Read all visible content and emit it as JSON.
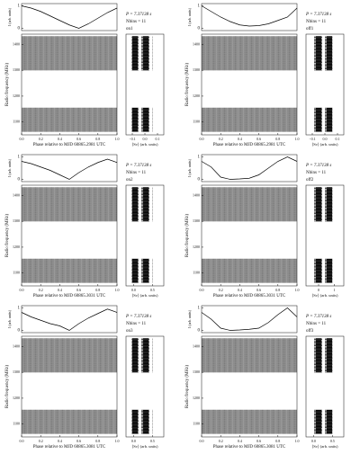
{
  "chart_data": [
    {
      "type": "profile",
      "label": "on1",
      "period_text": "P = 7.37138 s",
      "nbins_text": "Nbins = 11",
      "ylabel": "I (arb. units)",
      "x": [
        0,
        0.1,
        0.2,
        0.3,
        0.4,
        0.5,
        0.6,
        0.7,
        0.8,
        0.9,
        1.0
      ],
      "values": [
        1.0,
        0.9,
        0.75,
        0.55,
        0.35,
        0.15,
        0.0,
        0.2,
        0.45,
        0.7,
        0.9
      ],
      "ylim": [
        -0.1,
        1.1
      ],
      "yticks": [
        0,
        1
      ],
      "xlim": [
        0,
        1.0
      ],
      "xticks": [
        {
          "value": 0,
          "label": "0.0"
        },
        0.2,
        0.4,
        0.6,
        0.8,
        {
          "value": 1,
          "label": "1.0"
        }
      ],
      "xlabel": "Phase relative to MJD 60865.2981 UTC",
      "freq_ylabel": "Radio frequency (MHz)",
      "freq_ylim": [
        1050,
        1440
      ],
      "freq_yticks": [
        1100,
        1200,
        1300,
        1400
      ],
      "spec_xlabel": "⟨Sν⟩ (arb. units)",
      "spec_xlim": [
        -0.15,
        0.15
      ],
      "spec_xticks": [
        {
          "value": -0.1,
          "label": "−0.1"
        },
        {
          "value": 0,
          "label": "0.0"
        },
        0.1
      ]
    },
    {
      "type": "profile",
      "label": "off1",
      "period_text": "P = 7.37138 s",
      "nbins_text": "Nbins = 11",
      "ylabel": "I (arb. units)",
      "x": [
        0,
        0.1,
        0.2,
        0.3,
        0.4,
        0.5,
        0.6,
        0.7,
        0.8,
        0.9,
        1.0
      ],
      "values": [
        1.0,
        0.75,
        0.5,
        0.3,
        0.15,
        0.1,
        0.12,
        0.2,
        0.35,
        0.5,
        0.9
      ],
      "ylim": [
        -0.1,
        1.1
      ],
      "yticks": [
        0,
        1
      ],
      "xlim": [
        0,
        1.0
      ],
      "xticks": [
        {
          "value": 0,
          "label": "0.0"
        },
        0.2,
        0.4,
        0.6,
        0.8,
        {
          "value": 1,
          "label": "1.0"
        }
      ],
      "xlabel": "Phase relative to MJD 60865.2981 UTC",
      "freq_ylabel": "Radio frequency (MHz)",
      "freq_ylim": [
        1050,
        1440
      ],
      "freq_yticks": [
        1100,
        1200,
        1300,
        1400
      ],
      "spec_xlabel": "⟨Sν⟩ (arb. units)",
      "spec_xlim": [
        -0.15,
        0.15
      ],
      "spec_xticks": [
        {
          "value": -0.1,
          "label": "−0.1"
        },
        {
          "value": 0,
          "label": "0.0"
        },
        0.1
      ]
    },
    {
      "type": "profile",
      "label": "on2",
      "period_text": "P = 7.37138 s",
      "nbins_text": "Nbins = 11",
      "ylabel": "I (arb. units)",
      "x": [
        0,
        0.1,
        0.2,
        0.3,
        0.4,
        0.5,
        0.6,
        0.7,
        0.8,
        0.9,
        1.0
      ],
      "values": [
        0.8,
        0.7,
        0.55,
        0.4,
        0.2,
        0.0,
        0.3,
        0.55,
        0.75,
        0.9,
        0.75
      ],
      "ylim": [
        -0.1,
        1.1
      ],
      "yticks": [
        0,
        1
      ],
      "xlim": [
        0,
        1.0
      ],
      "xticks": [
        {
          "value": 0,
          "label": "0.0"
        },
        0.2,
        0.4,
        0.6,
        0.8,
        {
          "value": 1,
          "label": "1.0"
        }
      ],
      "xlabel": "Phase relative to MJD 60865.3031 UTC",
      "freq_ylabel": "Radio frequency (MHz)",
      "freq_ylim": [
        1050,
        1440
      ],
      "freq_yticks": [
        1100,
        1200,
        1300,
        1400
      ],
      "spec_xlabel": "⟨Sν⟩ (arb. units)",
      "spec_xlim": [
        -0.2,
        0.8
      ],
      "spec_xticks": [
        {
          "value": 0,
          "label": "0.0"
        },
        0.5
      ]
    },
    {
      "type": "profile",
      "label": "off2",
      "period_text": "P = 7.37138 s",
      "nbins_text": "Nbins = 11",
      "ylabel": "I (arb. units)",
      "x": [
        0,
        0.1,
        0.2,
        0.3,
        0.4,
        0.5,
        0.6,
        0.7,
        0.8,
        0.9,
        1.0
      ],
      "values": [
        0.8,
        0.55,
        0.1,
        0.0,
        0.02,
        0.05,
        0.2,
        0.5,
        0.8,
        1.0,
        0.8
      ],
      "ylim": [
        -0.1,
        1.1
      ],
      "yticks": [
        0,
        1
      ],
      "xlim": [
        0,
        1.0
      ],
      "xticks": [
        {
          "value": 0,
          "label": "0.0"
        },
        0.2,
        0.4,
        0.6,
        0.8,
        {
          "value": 1,
          "label": "1.0"
        }
      ],
      "xlabel": "Phase relative to MJD 60865.3031 UTC",
      "freq_ylabel": "Radio frequency (MHz)",
      "freq_ylim": [
        1050,
        1440
      ],
      "freq_yticks": [
        1100,
        1200,
        1300,
        1400
      ],
      "spec_xlabel": "⟨Sν⟩ (arb. units)",
      "spec_xlim": [
        -0.8,
        1.6
      ],
      "spec_xticks": [
        0,
        1
      ]
    },
    {
      "type": "profile",
      "label": "on3",
      "period_text": "P = 7.37138 s",
      "nbins_text": "Nbins = 11",
      "ylabel": "I (arb. units)",
      "x": [
        0,
        0.1,
        0.2,
        0.3,
        0.4,
        0.5,
        0.6,
        0.7,
        0.8,
        0.9,
        1.0
      ],
      "values": [
        0.8,
        0.6,
        0.45,
        0.3,
        0.2,
        0.0,
        0.3,
        0.55,
        0.75,
        0.95,
        0.8
      ],
      "ylim": [
        -0.1,
        1.1
      ],
      "yticks": [
        0,
        1
      ],
      "xlim": [
        0,
        1.0
      ],
      "xticks": [
        {
          "value": 0,
          "label": "0.0"
        },
        0.2,
        0.4,
        0.6,
        0.8,
        {
          "value": 1,
          "label": "1.0"
        }
      ],
      "xlabel": "Phase relative to MJD 60865.3081 UTC",
      "freq_ylabel": "Radio frequency (MHz)",
      "freq_ylim": [
        1050,
        1440
      ],
      "freq_yticks": [
        1100,
        1200,
        1300,
        1400
      ],
      "spec_xlabel": "⟨Sν⟩ (arb. units)",
      "spec_xlim": [
        -0.2,
        0.8
      ],
      "spec_xticks": [
        {
          "value": 0,
          "label": "0.0"
        },
        0.5
      ]
    },
    {
      "type": "profile",
      "label": "off3",
      "period_text": "P = 7.37138 s",
      "nbins_text": "Nbins = 11",
      "ylabel": "I (arb. units)",
      "x": [
        0,
        0.1,
        0.2,
        0.3,
        0.4,
        0.5,
        0.6,
        0.7,
        0.8,
        0.9,
        1.0
      ],
      "values": [
        0.8,
        0.5,
        0.1,
        0.0,
        0.02,
        0.05,
        0.1,
        0.35,
        0.7,
        1.0,
        0.6
      ],
      "ylim": [
        -0.1,
        1.1
      ],
      "yticks": [
        0,
        1
      ],
      "xlim": [
        0,
        1.0
      ],
      "xticks": [
        {
          "value": 0,
          "label": "0.0"
        },
        0.2,
        0.4,
        0.6,
        0.8,
        {
          "value": 1,
          "label": "1.0"
        }
      ],
      "xlabel": "Phase relative to MJD 60865.3081 UTC",
      "freq_ylabel": "Radio frequency (MHz)",
      "freq_ylim": [
        1050,
        1440
      ],
      "freq_yticks": [
        1100,
        1200,
        1300,
        1400
      ],
      "spec_xlabel": "⟨Sν⟩ (arb. units)",
      "spec_xlim": [
        -0.2,
        0.8
      ],
      "spec_xticks": [
        {
          "value": 0,
          "label": "0.0"
        },
        0.5
      ]
    }
  ]
}
